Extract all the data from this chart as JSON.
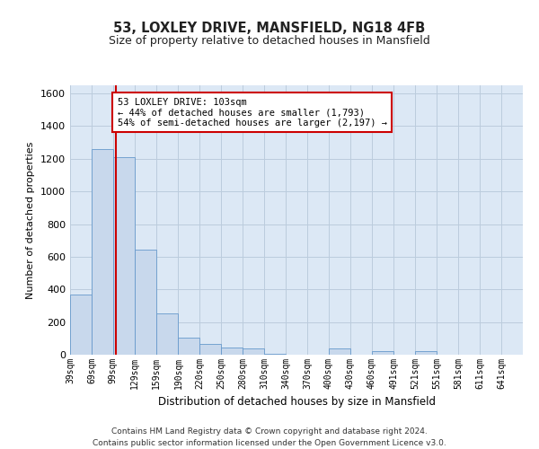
{
  "title1": "53, LOXLEY DRIVE, MANSFIELD, NG18 4FB",
  "title2": "Size of property relative to detached houses in Mansfield",
  "xlabel": "Distribution of detached houses by size in Mansfield",
  "ylabel": "Number of detached properties",
  "footer": "Contains HM Land Registry data © Crown copyright and database right 2024.\nContains public sector information licensed under the Open Government Licence v3.0.",
  "annotation_line1": "53 LOXLEY DRIVE: 103sqm",
  "annotation_line2": "← 44% of detached houses are smaller (1,793)",
  "annotation_line3": "54% of semi-detached houses are larger (2,197) →",
  "property_size_sqm": 103,
  "bar_color": "#c8d8ec",
  "bar_edge_color": "#6699cc",
  "marker_color": "#cc0000",
  "annotation_box_color": "#cc0000",
  "background_color": "#ffffff",
  "plot_bg_color": "#dce8f5",
  "grid_color": "#bbccdd",
  "ylim": [
    0,
    1650
  ],
  "yticks": [
    0,
    200,
    400,
    600,
    800,
    1000,
    1200,
    1400,
    1600
  ],
  "categories": [
    "39sqm",
    "69sqm",
    "99sqm",
    "129sqm",
    "159sqm",
    "190sqm",
    "220sqm",
    "250sqm",
    "280sqm",
    "310sqm",
    "340sqm",
    "370sqm",
    "400sqm",
    "430sqm",
    "460sqm",
    "491sqm",
    "521sqm",
    "551sqm",
    "581sqm",
    "611sqm",
    "641sqm"
  ],
  "values": [
    370,
    1260,
    1210,
    645,
    255,
    105,
    65,
    45,
    40,
    5,
    0,
    0,
    40,
    0,
    20,
    0,
    20,
    0,
    0,
    0,
    0
  ],
  "bin_edges": [
    39,
    69,
    99,
    129,
    159,
    190,
    220,
    250,
    280,
    310,
    340,
    370,
    400,
    430,
    460,
    491,
    521,
    551,
    581,
    611,
    641,
    671
  ]
}
